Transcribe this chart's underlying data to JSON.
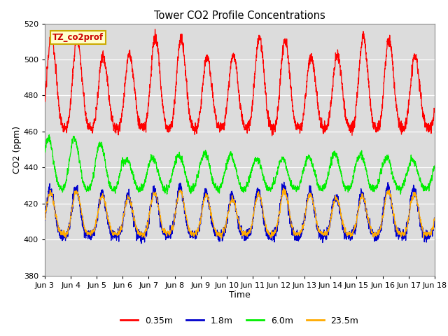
{
  "title": "Tower CO2 Profile Concentrations",
  "xlabel": "Time",
  "ylabel": "CO2 (ppm)",
  "ylim": [
    380,
    520
  ],
  "tick_labels": [
    "Jun 3",
    "Jun 4",
    "Jun 5",
    "Jun 6",
    "Jun 7",
    "Jun 8",
    "Jun 9",
    "Jun 10",
    "Jun 11",
    "Jun 12",
    "Jun 13",
    "Jun 14",
    "Jun 15",
    "Jun 16",
    "Jun 17",
    "Jun 18"
  ],
  "annotation_text": "TZ_co2prof",
  "annotation_color": "#cc0000",
  "annotation_bg": "#ffffcc",
  "annotation_edge": "#ccaa00",
  "bg_color": "#dcdcdc",
  "grid_color": "#ffffff",
  "legend_items": [
    {
      "label": "0.35m",
      "color": "#ff0000"
    },
    {
      "label": "1.8m",
      "color": "#0000cc"
    },
    {
      "label": "6.0m",
      "color": "#00ee00"
    },
    {
      "label": "23.5m",
      "color": "#ffaa00"
    }
  ],
  "yticks": [
    380,
    400,
    420,
    440,
    460,
    480,
    500,
    520
  ]
}
